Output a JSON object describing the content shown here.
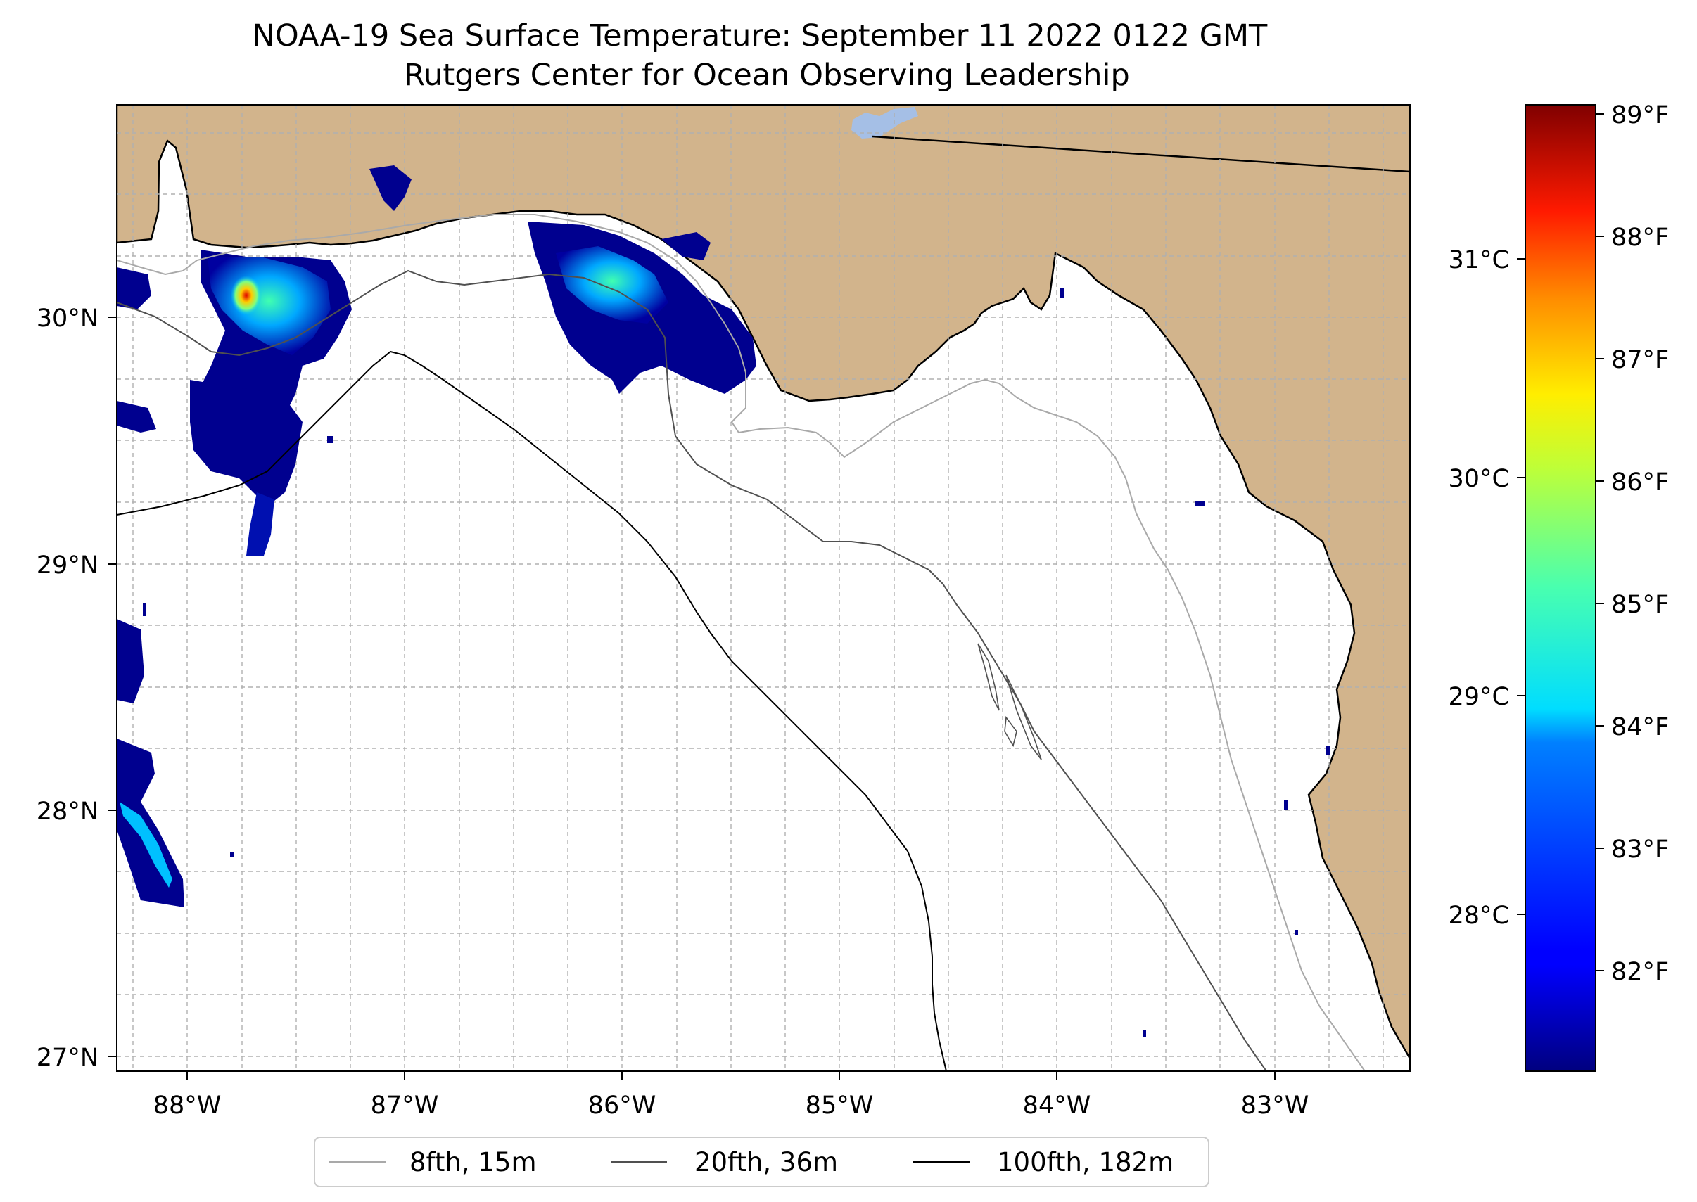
{
  "title": {
    "line1": "NOAA-19 Sea Surface Temperature: September 11 2022 0122 GMT",
    "line2": "Rutgers Center for Ocean Observing Leadership"
  },
  "map": {
    "lon_range": [
      -88.32,
      -82.38
    ],
    "lat_range": [
      26.93,
      30.87
    ],
    "lon_ticks": [
      {
        "value": -88,
        "label": "88°W"
      },
      {
        "value": -87,
        "label": "87°W"
      },
      {
        "value": -86,
        "label": "86°W"
      },
      {
        "value": -85,
        "label": "85°W"
      },
      {
        "value": -84,
        "label": "84°W"
      },
      {
        "value": -83,
        "label": "83°W"
      }
    ],
    "lat_ticks": [
      {
        "value": 30,
        "label": "30°N"
      },
      {
        "value": 29,
        "label": "29°N"
      },
      {
        "value": 28,
        "label": "28°N"
      },
      {
        "value": 27,
        "label": "27°N"
      }
    ],
    "gridlines": "dashed, every 0.25°",
    "colors": {
      "land": "#d2b48c",
      "ocean": "#ffffff",
      "coastline": "#000000",
      "lake": "#a5bfe6"
    }
  },
  "colorbar": {
    "colormap": "jet",
    "range_f": [
      81.2,
      89.1
    ],
    "celsius_ticks": [
      {
        "value": 31,
        "label": "31°C"
      },
      {
        "value": 30,
        "label": "30°C"
      },
      {
        "value": 29,
        "label": "29°C"
      },
      {
        "value": 28,
        "label": "28°C"
      }
    ],
    "fahrenheit_ticks": [
      {
        "value": 89,
        "label": "89°F"
      },
      {
        "value": 88,
        "label": "88°F"
      },
      {
        "value": 87,
        "label": "87°F"
      },
      {
        "value": 86,
        "label": "86°F"
      },
      {
        "value": 85,
        "label": "85°F"
      },
      {
        "value": 84,
        "label": "84°F"
      },
      {
        "value": 83,
        "label": "83°F"
      },
      {
        "value": 82,
        "label": "82°F"
      }
    ]
  },
  "legend": {
    "placement": "bottom-center",
    "items": [
      {
        "label": "8fth, 15m",
        "color": "#a9a9a9"
      },
      {
        "label": "20fth, 36m",
        "color": "#505050"
      },
      {
        "label": "100fth, 182m",
        "color": "#000000"
      }
    ]
  }
}
